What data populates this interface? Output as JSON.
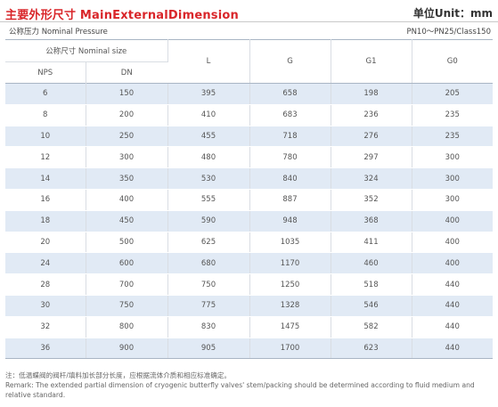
{
  "header": {
    "title": "主要外形尺寸 MainExternalDimension",
    "unit": "单位Unit：mm"
  },
  "pressure": {
    "label": "公称压力 Nominal Pressure",
    "value": "PN10～PN25/Class150"
  },
  "table": {
    "nominal_size_label": "公称尺寸 Nominal size",
    "columns": [
      "NPS",
      "DN",
      "L",
      "G",
      "G1",
      "G0"
    ],
    "rows": [
      [
        "6",
        "150",
        "395",
        "658",
        "198",
        "205"
      ],
      [
        "8",
        "200",
        "410",
        "683",
        "236",
        "235"
      ],
      [
        "10",
        "250",
        "455",
        "718",
        "276",
        "235"
      ],
      [
        "12",
        "300",
        "480",
        "780",
        "297",
        "300"
      ],
      [
        "14",
        "350",
        "530",
        "840",
        "324",
        "300"
      ],
      [
        "16",
        "400",
        "555",
        "887",
        "352",
        "300"
      ],
      [
        "18",
        "450",
        "590",
        "948",
        "368",
        "400"
      ],
      [
        "20",
        "500",
        "625",
        "1035",
        "411",
        "400"
      ],
      [
        "24",
        "600",
        "680",
        "1170",
        "460",
        "400"
      ],
      [
        "28",
        "700",
        "750",
        "1250",
        "518",
        "440"
      ],
      [
        "30",
        "750",
        "775",
        "1328",
        "546",
        "440"
      ],
      [
        "32",
        "800",
        "830",
        "1475",
        "582",
        "440"
      ],
      [
        "36",
        "900",
        "905",
        "1700",
        "623",
        "440"
      ]
    ]
  },
  "remark": {
    "cn": "注：低温蝶阀的阀杆/填料加长部分长度，应根据流体介质和相应标准确定。",
    "en": "Remark: The extended partial dimension of cryogenic butterfly valves' stem/packing should be determined according to fluid medium and relative standard."
  },
  "colors": {
    "title_red": "#d9262a",
    "row_stripe": "#e1eaf5",
    "rule": "#a9b5c4"
  }
}
